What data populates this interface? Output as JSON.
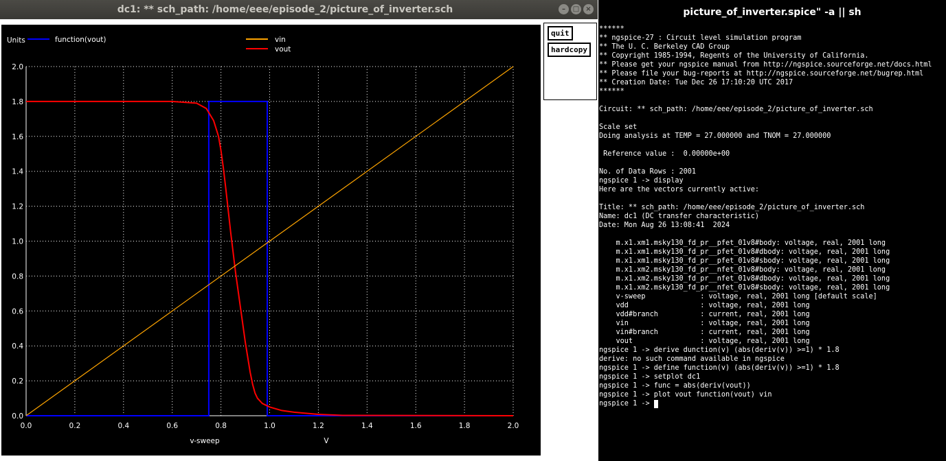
{
  "plot_window": {
    "title": "dc1: ** sch_path: /home/eee/episode_2/picture_of_inverter.sch",
    "buttons": {
      "quit": "quit",
      "hardcopy": "hardcopy"
    },
    "controls": {
      "minimize": "–",
      "maximize": "□",
      "close": "×"
    }
  },
  "terminal_window": {
    "title": "picture_of_inverter.spice\" -a || sh",
    "lines": [
      "******",
      "** ngspice-27 : Circuit level simulation program",
      "** The U. C. Berkeley CAD Group",
      "** Copyright 1985-1994, Regents of the University of California.",
      "** Please get your ngspice manual from http://ngspice.sourceforge.net/docs.html",
      "** Please file your bug-reports at http://ngspice.sourceforge.net/bugrep.html",
      "** Creation Date: Tue Dec 26 17:10:20 UTC 2017",
      "******",
      "",
      "Circuit: ** sch_path: /home/eee/episode_2/picture_of_inverter.sch",
      "",
      "Scale set",
      "Doing analysis at TEMP = 27.000000 and TNOM = 27.000000",
      "",
      " Reference value :  0.00000e+00",
      "",
      "No. of Data Rows : 2001",
      "ngspice 1 -> display",
      "Here are the vectors currently active:",
      "",
      "Title: ** sch_path: /home/eee/episode_2/picture_of_inverter.sch",
      "Name: dc1 (DC transfer characteristic)",
      "Date: Mon Aug 26 13:08:41  2024",
      "",
      "    m.x1.xm1.msky130_fd_pr__pfet_01v8#body: voltage, real, 2001 long",
      "    m.x1.xm1.msky130_fd_pr__pfet_01v8#dbody: voltage, real, 2001 long",
      "    m.x1.xm1.msky130_fd_pr__pfet_01v8#sbody: voltage, real, 2001 long",
      "    m.x1.xm2.msky130_fd_pr__nfet_01v8#body: voltage, real, 2001 long",
      "    m.x1.xm2.msky130_fd_pr__nfet_01v8#dbody: voltage, real, 2001 long",
      "    m.x1.xm2.msky130_fd_pr__nfet_01v8#sbody: voltage, real, 2001 long",
      "    v-sweep             : voltage, real, 2001 long [default scale]",
      "    vdd                 : voltage, real, 2001 long",
      "    vdd#branch          : current, real, 2001 long",
      "    vin                 : voltage, real, 2001 long",
      "    vin#branch          : current, real, 2001 long",
      "    vout                : voltage, real, 2001 long",
      "ngspice 1 -> derive dunction(v) (abs(deriv(v)) >=1) * 1.8",
      "derive: no such command available in ngspice",
      "ngspice 1 -> define function(v) (abs(deriv(v)) >=1) * 1.8",
      "ngspice 1 -> setplot dc1",
      "ngspice 1 -> func = abs(deriv(vout))",
      "ngspice 1 -> plot vout function(vout) vin"
    ],
    "prompt": "ngspice 1 -> "
  },
  "chart_data": {
    "type": "line",
    "ylabel": "Units",
    "xlabel": "v-sweep",
    "xunit": "V",
    "xlim": [
      0.0,
      2.0
    ],
    "ylim": [
      0.0,
      2.0
    ],
    "xticks": [
      "0.0",
      "0.2",
      "0.4",
      "0.6",
      "0.8",
      "1.0",
      "1.2",
      "1.4",
      "1.6",
      "1.8",
      "2.0"
    ],
    "yticks": [
      "0.0",
      "0.2",
      "0.4",
      "0.6",
      "0.8",
      "1.0",
      "1.2",
      "1.4",
      "1.6",
      "1.8",
      "2.0"
    ],
    "grid": true,
    "colors": {
      "background": "#000000",
      "axis": "#ffffff",
      "grid": "#ffffff"
    },
    "series": [
      {
        "name": "function(vout)",
        "color": "#0000ff",
        "x": [
          0.0,
          0.75,
          0.75,
          0.99,
          0.99,
          2.0
        ],
        "y": [
          0.0,
          0.0,
          1.8,
          1.8,
          0.0,
          0.0
        ]
      },
      {
        "name": "vin",
        "color": "#ffa500",
        "x": [
          0.0,
          2.0
        ],
        "y": [
          0.0,
          2.0
        ]
      },
      {
        "name": "vout",
        "color": "#ff0000",
        "x": [
          0.0,
          0.6,
          0.7,
          0.74,
          0.77,
          0.79,
          0.8,
          0.81,
          0.82,
          0.84,
          0.86,
          0.88,
          0.9,
          0.92,
          0.93,
          0.94,
          0.95,
          0.97,
          1.0,
          1.05,
          1.1,
          1.2,
          1.3,
          2.0
        ],
        "y": [
          1.8,
          1.8,
          1.79,
          1.76,
          1.69,
          1.6,
          1.52,
          1.42,
          1.3,
          1.05,
          0.82,
          0.62,
          0.42,
          0.25,
          0.18,
          0.13,
          0.1,
          0.07,
          0.05,
          0.03,
          0.02,
          0.008,
          0.002,
          0.0
        ]
      }
    ]
  }
}
